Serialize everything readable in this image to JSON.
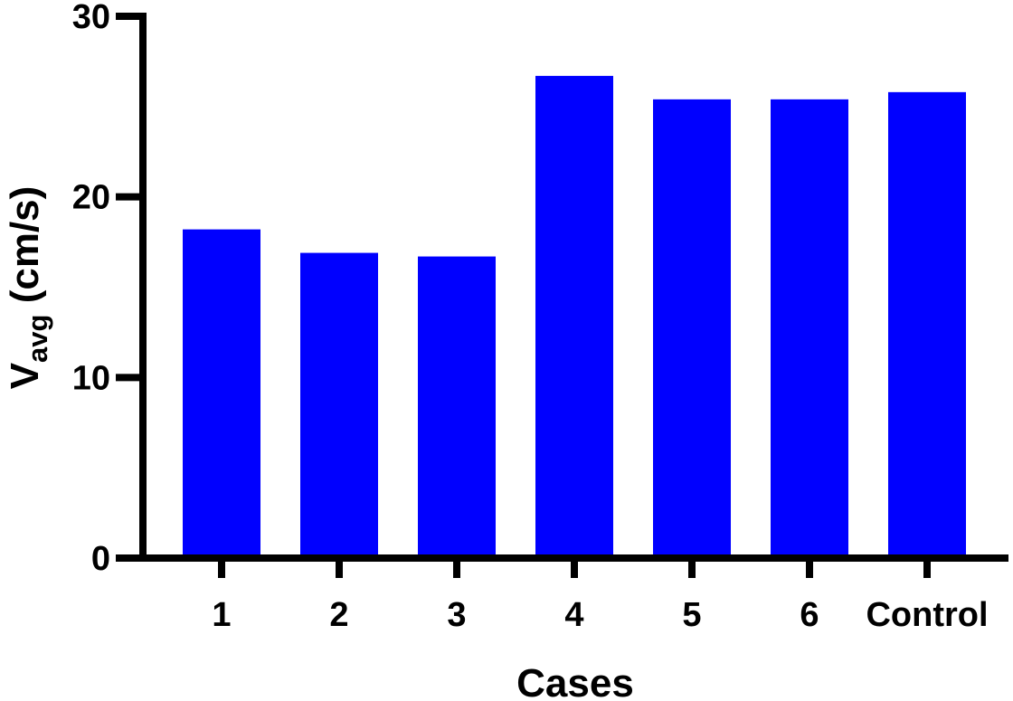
{
  "chart_data": {
    "type": "bar",
    "title": "",
    "categories": [
      "1",
      "2",
      "3",
      "4",
      "5",
      "6",
      "Control"
    ],
    "values": [
      18.2,
      16.9,
      16.7,
      26.7,
      25.4,
      25.4,
      25.8
    ],
    "xlabel": "Cases",
    "ylabel": {
      "main": "V",
      "subscript": "avg",
      "units": " (cm/s)"
    },
    "ylim": [
      0,
      30
    ],
    "yticks": [
      "0",
      "10",
      "20",
      "30"
    ],
    "grid": false,
    "legend": "none",
    "bar_color": "#0000FF",
    "axis_color": "#000000"
  }
}
